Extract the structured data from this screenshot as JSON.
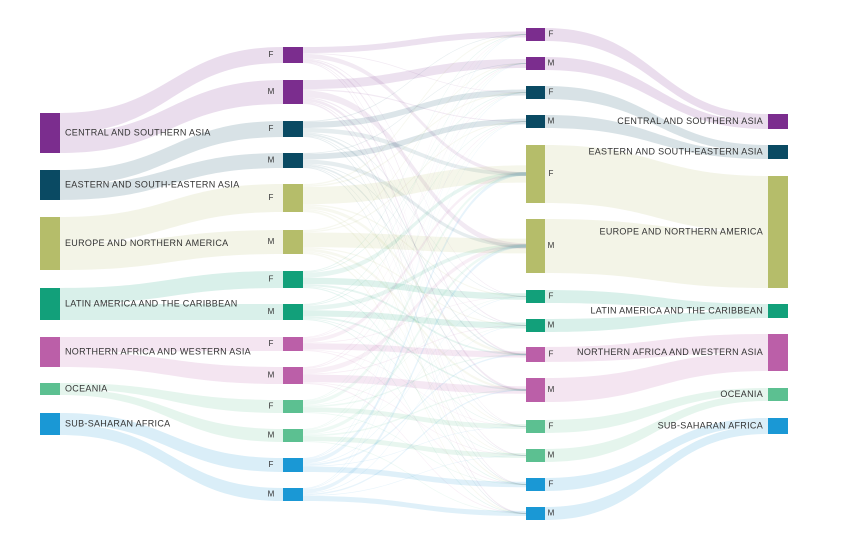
{
  "colors": {
    "central_southern_asia": "#7b2d8e",
    "eastern_south_eastern_asia": "#0a4a63",
    "europe_northern_america": "#b5bd6a",
    "latin_america_caribbean": "#12a07a",
    "northern_africa_western_asia": "#bb5fa8",
    "oceania": "#5cc091",
    "sub_saharan_africa": "#1a98d5"
  },
  "origin_regions": [
    {
      "key": "central_southern_asia",
      "label": "CENTRAL AND SOUTHERN ASIA"
    },
    {
      "key": "eastern_south_eastern_asia",
      "label": "EASTERN AND SOUTH-EASTERN ASIA"
    },
    {
      "key": "europe_northern_america",
      "label": "EUROPE AND NORTHERN AMERICA"
    },
    {
      "key": "latin_america_caribbean",
      "label": "LATIN AMERICA AND THE CARIBBEAN"
    },
    {
      "key": "northern_africa_western_asia",
      "label": "NORTHERN AFRICA AND WESTERN ASIA"
    },
    {
      "key": "oceania",
      "label": "OCEANIA"
    },
    {
      "key": "sub_saharan_africa",
      "label": "SUB-SAHARAN AFRICA"
    }
  ],
  "destination_regions": [
    {
      "key": "central_southern_asia",
      "label": "CENTRAL AND SOUTHERN ASIA"
    },
    {
      "key": "eastern_south_eastern_asia",
      "label": "EASTERN AND SOUTH-EASTERN ASIA"
    },
    {
      "key": "europe_northern_america",
      "label": "EUROPE AND NORTHERN AMERICA"
    },
    {
      "key": "latin_america_caribbean",
      "label": "LATIN AMERICA AND THE CARIBBEAN"
    },
    {
      "key": "northern_africa_western_asia",
      "label": "NORTHERN AFRICA AND WESTERN ASIA"
    },
    {
      "key": "oceania",
      "label": "OCEANIA"
    },
    {
      "key": "sub_saharan_africa",
      "label": "SUB-SAHARAN AFRICA"
    }
  ],
  "sex_labels": {
    "female": "F",
    "male": "M"
  }
}
